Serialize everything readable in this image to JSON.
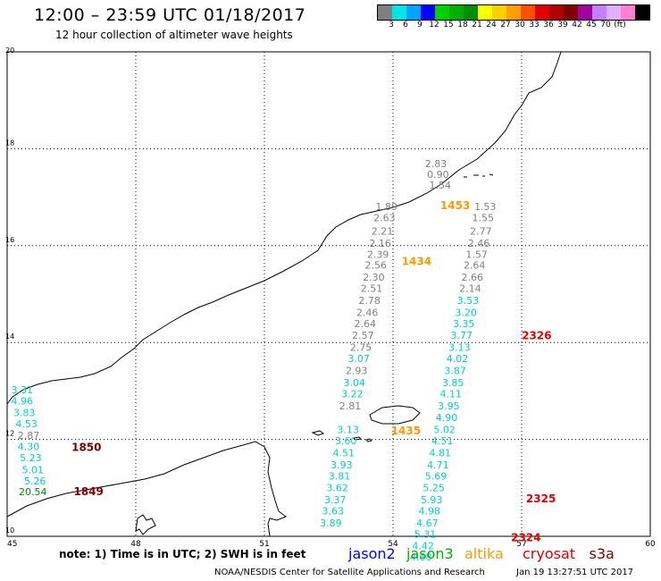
{
  "header": {
    "title": "12:00 – 23:59 UTC 01/18/2017",
    "subtitle": "12 hour collection of altimeter wave heights"
  },
  "colorbar": {
    "colors": [
      "#7f7f7f",
      "#00e5e5",
      "#00a5ff",
      "#0000ff",
      "#00d000",
      "#00b000",
      "#008c00",
      "#ffff00",
      "#ffd000",
      "#ffa000",
      "#ff5000",
      "#e00000",
      "#b00000",
      "#800000",
      "#a000a0",
      "#c080ff",
      "#e0b0ff",
      "#ff80d0",
      "#000000"
    ],
    "labels": [
      "3",
      "6",
      "9",
      "12",
      "15",
      "18",
      "21",
      "24",
      "27",
      "30",
      "33",
      "36",
      "39",
      "42",
      "45",
      "70",
      "(ft)"
    ]
  },
  "map": {
    "x_ticks": [
      "45",
      "48",
      "51",
      "54",
      "57",
      "60"
    ],
    "y_ticks": [
      "20",
      "18",
      "16",
      "14",
      "12",
      "10"
    ],
    "x_range": [
      45,
      60
    ],
    "y_range": [
      10,
      20
    ],
    "points": [
      {
        "text": "2.83",
        "color": "#808080",
        "lon": 55.0,
        "lat": 17.62
      },
      {
        "text": "0.90",
        "color": "#808080",
        "lon": 55.05,
        "lat": 17.4
      },
      {
        "text": "1.54",
        "color": "#808080",
        "lon": 55.1,
        "lat": 17.18
      },
      {
        "text": "1.89",
        "color": "#808080",
        "lon": 53.85,
        "lat": 16.73
      },
      {
        "text": "2.63",
        "color": "#808080",
        "lon": 53.8,
        "lat": 16.5
      },
      {
        "text": "2.21",
        "color": "#808080",
        "lon": 53.75,
        "lat": 16.23
      },
      {
        "text": "2.16",
        "color": "#808080",
        "lon": 53.7,
        "lat": 15.98
      },
      {
        "text": "2.39",
        "color": "#808080",
        "lon": 53.65,
        "lat": 15.75
      },
      {
        "text": "2.56",
        "color": "#808080",
        "lon": 53.6,
        "lat": 15.53
      },
      {
        "text": "2.30",
        "color": "#808080",
        "lon": 53.55,
        "lat": 15.28
      },
      {
        "text": "2.51",
        "color": "#808080",
        "lon": 53.5,
        "lat": 15.05
      },
      {
        "text": "2.78",
        "color": "#808080",
        "lon": 53.45,
        "lat": 14.8
      },
      {
        "text": "2.46",
        "color": "#808080",
        "lon": 53.4,
        "lat": 14.55
      },
      {
        "text": "2.64",
        "color": "#808080",
        "lon": 53.35,
        "lat": 14.32
      },
      {
        "text": "2.57",
        "color": "#808080",
        "lon": 53.3,
        "lat": 14.08
      },
      {
        "text": "2.75",
        "color": "#808080",
        "lon": 53.25,
        "lat": 13.83
      },
      {
        "text": "3.07",
        "color": "#00d0d0",
        "lon": 53.2,
        "lat": 13.6
      },
      {
        "text": "2.93",
        "color": "#808080",
        "lon": 53.15,
        "lat": 13.35
      },
      {
        "text": "3.04",
        "color": "#00d0d0",
        "lon": 53.1,
        "lat": 13.1
      },
      {
        "text": "3.22",
        "color": "#00d0d0",
        "lon": 53.05,
        "lat": 12.87
      },
      {
        "text": "2.81",
        "color": "#808080",
        "lon": 53.0,
        "lat": 12.62
      },
      {
        "text": "3.13",
        "color": "#00d0d0",
        "lon": 52.95,
        "lat": 12.13
      },
      {
        "text": "3.60",
        "color": "#00d0d0",
        "lon": 52.9,
        "lat": 11.9
      },
      {
        "text": "4.51",
        "color": "#00d0d0",
        "lon": 52.85,
        "lat": 11.65
      },
      {
        "text": "3.93",
        "color": "#00d0d0",
        "lon": 52.8,
        "lat": 11.4
      },
      {
        "text": "3.81",
        "color": "#00d0d0",
        "lon": 52.75,
        "lat": 11.17
      },
      {
        "text": "3.62",
        "color": "#00d0d0",
        "lon": 52.7,
        "lat": 10.93
      },
      {
        "text": "3.37",
        "color": "#00d0d0",
        "lon": 52.65,
        "lat": 10.68
      },
      {
        "text": "3.63",
        "color": "#00d0d0",
        "lon": 52.6,
        "lat": 10.45
      },
      {
        "text": "3.89",
        "color": "#00d0d0",
        "lon": 52.55,
        "lat": 10.2
      },
      {
        "text": "1.53",
        "color": "#808080",
        "lon": 56.15,
        "lat": 16.73
      },
      {
        "text": "1.55",
        "color": "#808080",
        "lon": 56.1,
        "lat": 16.5
      },
      {
        "text": "2.77",
        "color": "#808080",
        "lon": 56.05,
        "lat": 16.23
      },
      {
        "text": "2.46",
        "color": "#808080",
        "lon": 56.0,
        "lat": 15.98
      },
      {
        "text": "1.57",
        "color": "#808080",
        "lon": 55.95,
        "lat": 15.75
      },
      {
        "text": "2.64",
        "color": "#808080",
        "lon": 55.9,
        "lat": 15.53
      },
      {
        "text": "2.66",
        "color": "#808080",
        "lon": 55.85,
        "lat": 15.28
      },
      {
        "text": "2.14",
        "color": "#808080",
        "lon": 55.8,
        "lat": 15.05
      },
      {
        "text": "3.53",
        "color": "#00d0d0",
        "lon": 55.75,
        "lat": 14.8
      },
      {
        "text": "3.20",
        "color": "#00d0d0",
        "lon": 55.7,
        "lat": 14.55
      },
      {
        "text": "3.35",
        "color": "#00d0d0",
        "lon": 55.65,
        "lat": 14.32
      },
      {
        "text": "3.77",
        "color": "#00d0d0",
        "lon": 55.6,
        "lat": 14.08
      },
      {
        "text": "3.13",
        "color": "#00d0d0",
        "lon": 55.55,
        "lat": 13.83
      },
      {
        "text": "4.02",
        "color": "#00d0d0",
        "lon": 55.5,
        "lat": 13.6
      },
      {
        "text": "3.87",
        "color": "#00d0d0",
        "lon": 55.45,
        "lat": 13.35
      },
      {
        "text": "3.85",
        "color": "#00d0d0",
        "lon": 55.4,
        "lat": 13.1
      },
      {
        "text": "4.11",
        "color": "#00d0d0",
        "lon": 55.35,
        "lat": 12.87
      },
      {
        "text": "3.95",
        "color": "#00d0d0",
        "lon": 55.3,
        "lat": 12.62
      },
      {
        "text": "4.90",
        "color": "#00d0d0",
        "lon": 55.25,
        "lat": 12.38
      },
      {
        "text": "5.02",
        "color": "#00d0d0",
        "lon": 55.2,
        "lat": 12.13
      },
      {
        "text": "4.51",
        "color": "#00d0d0",
        "lon": 55.15,
        "lat": 11.9
      },
      {
        "text": "4.81",
        "color": "#00d0d0",
        "lon": 55.1,
        "lat": 11.65
      },
      {
        "text": "4.71",
        "color": "#00d0d0",
        "lon": 55.05,
        "lat": 11.4
      },
      {
        "text": "5.69",
        "color": "#00d0d0",
        "lon": 55.0,
        "lat": 11.17
      },
      {
        "text": "5.25",
        "color": "#00d0d0",
        "lon": 54.95,
        "lat": 10.93
      },
      {
        "text": "5.93",
        "color": "#00d0d0",
        "lon": 54.9,
        "lat": 10.68
      },
      {
        "text": "4.98",
        "color": "#00d0d0",
        "lon": 54.85,
        "lat": 10.45
      },
      {
        "text": "4.67",
        "color": "#00d0d0",
        "lon": 54.8,
        "lat": 10.2
      },
      {
        "text": "5.31",
        "color": "#00d0d0",
        "lon": 54.75,
        "lat": 9.97
      },
      {
        "text": "4.42",
        "color": "#00d0d0",
        "lon": 54.7,
        "lat": 9.73
      },
      {
        "text": "4.68",
        "color": "#00d0d0",
        "lon": 54.65,
        "lat": 9.5
      },
      {
        "text": "3.31",
        "color": "#00d0d0",
        "lon": 45.35,
        "lat": 12.95
      },
      {
        "text": "4.96",
        "color": "#00d0d0",
        "lon": 45.35,
        "lat": 12.72
      },
      {
        "text": "3.83",
        "color": "#00d0d0",
        "lon": 45.4,
        "lat": 12.48
      },
      {
        "text": "4.53",
        "color": "#00d0d0",
        "lon": 45.45,
        "lat": 12.25
      },
      {
        "text": "2.87",
        "color": "#808080",
        "lon": 45.5,
        "lat": 12.01
      },
      {
        "text": "4.30",
        "color": "#00d0d0",
        "lon": 45.5,
        "lat": 11.78
      },
      {
        "text": "5.23",
        "color": "#00d0d0",
        "lon": 45.55,
        "lat": 11.55
      },
      {
        "text": "5.01",
        "color": "#00d0d0",
        "lon": 45.6,
        "lat": 11.3
      },
      {
        "text": "5.26",
        "color": "#00d0d0",
        "lon": 45.65,
        "lat": 11.07
      },
      {
        "text": "20.54",
        "color": "#008c00",
        "lon": 45.6,
        "lat": 10.85
      }
    ],
    "time_labels": [
      {
        "text": "1453",
        "color": "#ff9900",
        "lon": 55.45,
        "lat": 16.75
      },
      {
        "text": "1434",
        "color": "#ff9900",
        "lon": 54.55,
        "lat": 15.6
      },
      {
        "text": "1435",
        "color": "#ff9900",
        "lon": 54.3,
        "lat": 12.1
      },
      {
        "text": "2326",
        "color": "#e00000",
        "lon": 57.35,
        "lat": 14.07
      },
      {
        "text": "2325",
        "color": "#e00000",
        "lon": 57.45,
        "lat": 10.7
      },
      {
        "text": "2324",
        "color": "#e00000",
        "lon": 57.1,
        "lat": 9.9
      },
      {
        "text": "1850",
        "color": "#800000",
        "lon": 46.85,
        "lat": 11.76
      },
      {
        "text": "1849",
        "color": "#800000",
        "lon": 46.9,
        "lat": 10.85
      }
    ]
  },
  "footer": {
    "note": "note:  1) Time is in UTC;  2) SWH is in feet",
    "legend": [
      {
        "label": "jason2",
        "color": "#0000ff"
      },
      {
        "label": "jason3",
        "color": "#00b000"
      },
      {
        "label": "altika",
        "color": "#ff9900"
      },
      {
        "label": "cryosat",
        "color": "#e00000"
      },
      {
        "label": "s3a",
        "color": "#800000"
      }
    ],
    "credit": "NOAA/NESDIS Center for Satellite Applications and Research",
    "timestamp": "Jan 19 13:27:51 UTC 2017"
  }
}
